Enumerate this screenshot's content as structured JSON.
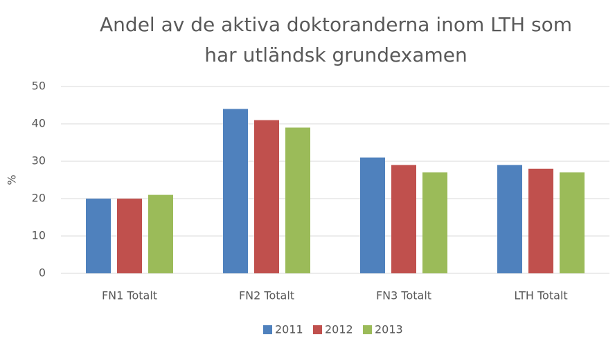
{
  "chart_data": {
    "type": "bar",
    "title": "Andel av de aktiva doktoranderna inom LTH som\nhar utländsk grundexamen",
    "y_label": "%",
    "categories": [
      "FN1 Totalt",
      "FN2 Totalt",
      "FN3 Totalt",
      "LTH Totalt"
    ],
    "series": [
      {
        "name": "2011",
        "color": "#4f81bd",
        "values": [
          20,
          44,
          31,
          29
        ]
      },
      {
        "name": "2012",
        "color": "#c0504d",
        "values": [
          20,
          41,
          29,
          28
        ]
      },
      {
        "name": "2013",
        "color": "#9bbb59",
        "values": [
          21,
          39,
          27,
          27
        ]
      }
    ],
    "ylim": [
      0,
      50
    ],
    "yticks": [
      0,
      10,
      20,
      30,
      40,
      50
    ],
    "grid": true,
    "legend": "bottom"
  }
}
